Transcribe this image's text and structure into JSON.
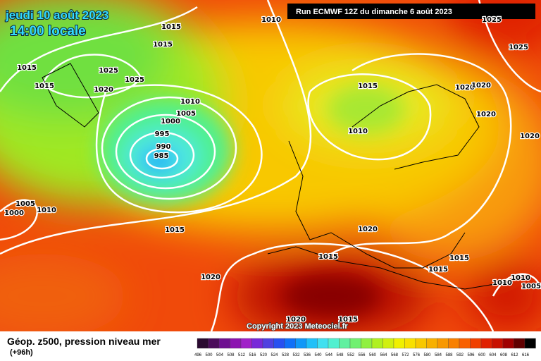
{
  "header": {
    "date": "jeudi 10 août 2023",
    "time": "14:00 locale",
    "run": "Run ECMWF 12Z du dimanche 6 août 2023"
  },
  "copyright": "Copyright 2023 Meteociel.fr",
  "isobar_labels": [
    "1010",
    "1015",
    "1015",
    "1015",
    "1025",
    "1025",
    "1015",
    "1020",
    "1010",
    "1005",
    "1000",
    "995",
    "990",
    "985",
    "1015",
    "1020",
    "1020",
    "1020",
    "1020",
    "1010",
    "1025",
    "1005",
    "1010",
    "1000",
    "1015",
    "1020",
    "1015",
    "1015",
    "1015",
    "1020",
    "1010",
    "1010",
    "1005",
    "1020",
    "1015",
    "1025"
  ],
  "legend": {
    "title": "Géop. z500, pression niveau mer",
    "subtitle": "(+96h)",
    "items": [
      {
        "label": 496,
        "color": "#2a0a30"
      },
      {
        "label": 500,
        "color": "#4b0b5a"
      },
      {
        "label": 504,
        "color": "#6e1090"
      },
      {
        "label": 508,
        "color": "#8c14b0"
      },
      {
        "label": 512,
        "color": "#a020c8"
      },
      {
        "label": 516,
        "color": "#7828d8"
      },
      {
        "label": 520,
        "color": "#5040e0"
      },
      {
        "label": 524,
        "color": "#2850f0"
      },
      {
        "label": 528,
        "color": "#1070f8"
      },
      {
        "label": 532,
        "color": "#1098f8"
      },
      {
        "label": 536,
        "color": "#20c0f8"
      },
      {
        "label": 540,
        "color": "#40e0f0"
      },
      {
        "label": 544,
        "color": "#50f0d0"
      },
      {
        "label": 548,
        "color": "#60f0a0"
      },
      {
        "label": 552,
        "color": "#70f070"
      },
      {
        "label": 556,
        "color": "#90f040"
      },
      {
        "label": 560,
        "color": "#b0f020"
      },
      {
        "label": 564,
        "color": "#d0f010"
      },
      {
        "label": 568,
        "color": "#f0f000"
      },
      {
        "label": 572,
        "color": "#f8e000"
      },
      {
        "label": 576,
        "color": "#f8c800"
      },
      {
        "label": 580,
        "color": "#f8b000"
      },
      {
        "label": 584,
        "color": "#f89800"
      },
      {
        "label": 588,
        "color": "#f88000"
      },
      {
        "label": 592,
        "color": "#f86000"
      },
      {
        "label": 596,
        "color": "#f04000"
      },
      {
        "label": 600,
        "color": "#e02000"
      },
      {
        "label": 604,
        "color": "#c81000"
      },
      {
        "label": 608,
        "color": "#a00000"
      },
      {
        "label": 612,
        "color": "#600000"
      },
      {
        "label": 616,
        "color": "#000000"
      }
    ]
  }
}
